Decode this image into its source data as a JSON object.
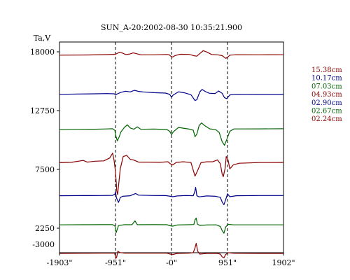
{
  "chart_data": {
    "type": "line",
    "title": "SUN_A-20:2002-08-30 10:35:21.900",
    "ylabel": "Ta,V",
    "xlabel": "",
    "xlim": [
      -1903,
      1902
    ],
    "ylim": [
      -3000,
      20000
    ],
    "x_ticks": [
      -1903,
      -951,
      0,
      951,
      1902
    ],
    "x_tick_labels": [
      "-1903\"",
      "-951\"",
      "-0\"",
      "951\"",
      "1902\""
    ],
    "y_ticks": [
      -3000,
      2250,
      7500,
      12750,
      18000
    ],
    "y_tick_labels": [
      "-3000",
      "2250",
      "7500",
      "12750",
      "18000"
    ],
    "vlines": [
      -951,
      0,
      951
    ],
    "grid": false,
    "legend_position": "right",
    "series": [
      {
        "name": "15.38cm",
        "color": "#8b0000",
        "points": [
          [
            -1903,
            17700
          ],
          [
            -1400,
            17720
          ],
          [
            -1100,
            17750
          ],
          [
            -951,
            17780
          ],
          [
            -930,
            17840
          ],
          [
            -880,
            17960
          ],
          [
            -830,
            17880
          ],
          [
            -780,
            17760
          ],
          [
            -720,
            17790
          ],
          [
            -650,
            17900
          ],
          [
            -600,
            17840
          ],
          [
            -520,
            17730
          ],
          [
            -300,
            17730
          ],
          [
            -80,
            17760
          ],
          [
            -40,
            17740
          ],
          [
            -10,
            17600
          ],
          [
            20,
            17530
          ],
          [
            60,
            17660
          ],
          [
            150,
            17780
          ],
          [
            300,
            17770
          ],
          [
            380,
            17650
          ],
          [
            430,
            17610
          ],
          [
            500,
            17930
          ],
          [
            540,
            18100
          ],
          [
            600,
            17980
          ],
          [
            680,
            17760
          ],
          [
            780,
            17730
          ],
          [
            860,
            17660
          ],
          [
            920,
            17420
          ],
          [
            951,
            17500
          ],
          [
            990,
            17700
          ],
          [
            1100,
            17740
          ],
          [
            1500,
            17730
          ],
          [
            1902,
            17740
          ]
        ]
      },
      {
        "name": "10.17cm",
        "color": "#00008b",
        "points": [
          [
            -1903,
            14200
          ],
          [
            -1600,
            14230
          ],
          [
            -1300,
            14250
          ],
          [
            -1100,
            14270
          ],
          [
            -970,
            14250
          ],
          [
            -951,
            14130
          ],
          [
            -930,
            14220
          ],
          [
            -860,
            14380
          ],
          [
            -780,
            14480
          ],
          [
            -700,
            14420
          ],
          [
            -630,
            14560
          ],
          [
            -560,
            14460
          ],
          [
            -480,
            14420
          ],
          [
            -300,
            14350
          ],
          [
            -100,
            14310
          ],
          [
            -30,
            14200
          ],
          [
            0,
            13950
          ],
          [
            30,
            14150
          ],
          [
            120,
            14430
          ],
          [
            220,
            14340
          ],
          [
            330,
            14170
          ],
          [
            400,
            13650
          ],
          [
            430,
            13720
          ],
          [
            480,
            14420
          ],
          [
            520,
            14640
          ],
          [
            570,
            14470
          ],
          [
            640,
            14300
          ],
          [
            740,
            14270
          ],
          [
            800,
            14500
          ],
          [
            860,
            14300
          ],
          [
            900,
            13900
          ],
          [
            940,
            13820
          ],
          [
            990,
            14150
          ],
          [
            1080,
            14200
          ],
          [
            1500,
            14190
          ],
          [
            1902,
            14190
          ]
        ]
      },
      {
        "name": "07.03cm",
        "color": "#006400",
        "points": [
          [
            -1903,
            11050
          ],
          [
            -1600,
            11080
          ],
          [
            -1300,
            11090
          ],
          [
            -1100,
            11110
          ],
          [
            -1000,
            11130
          ],
          [
            -960,
            10980
          ],
          [
            -951,
            10600
          ],
          [
            -920,
            10050
          ],
          [
            -890,
            10380
          ],
          [
            -860,
            10840
          ],
          [
            -800,
            11250
          ],
          [
            -750,
            11480
          ],
          [
            -700,
            11200
          ],
          [
            -640,
            11090
          ],
          [
            -580,
            11300
          ],
          [
            -520,
            11080
          ],
          [
            -300,
            11100
          ],
          [
            -80,
            11060
          ],
          [
            -30,
            10900
          ],
          [
            0,
            10600
          ],
          [
            30,
            10850
          ],
          [
            120,
            11250
          ],
          [
            200,
            11180
          ],
          [
            300,
            11100
          ],
          [
            370,
            11000
          ],
          [
            400,
            10420
          ],
          [
            430,
            10650
          ],
          [
            470,
            11420
          ],
          [
            510,
            11650
          ],
          [
            570,
            11390
          ],
          [
            650,
            11120
          ],
          [
            750,
            11050
          ],
          [
            810,
            10800
          ],
          [
            860,
            9980
          ],
          [
            900,
            9650
          ],
          [
            940,
            10200
          ],
          [
            990,
            10900
          ],
          [
            1060,
            11110
          ],
          [
            1500,
            11120
          ],
          [
            1902,
            11130
          ]
        ]
      },
      {
        "name": "04.93cm",
        "color": "#8b0000",
        "points": [
          [
            -1903,
            8100
          ],
          [
            -1700,
            8130
          ],
          [
            -1500,
            8300
          ],
          [
            -1430,
            8150
          ],
          [
            -1300,
            8230
          ],
          [
            -1150,
            8260
          ],
          [
            -1050,
            8520
          ],
          [
            -1000,
            8950
          ],
          [
            -975,
            8300
          ],
          [
            -951,
            7300
          ],
          [
            -930,
            5600
          ],
          [
            -915,
            5250
          ],
          [
            -895,
            6250
          ],
          [
            -870,
            7550
          ],
          [
            -820,
            8650
          ],
          [
            -760,
            8750
          ],
          [
            -700,
            8400
          ],
          [
            -640,
            8330
          ],
          [
            -560,
            8150
          ],
          [
            -400,
            8150
          ],
          [
            -200,
            8130
          ],
          [
            -60,
            8180
          ],
          [
            -20,
            8000
          ],
          [
            20,
            7900
          ],
          [
            80,
            8120
          ],
          [
            200,
            8180
          ],
          [
            330,
            8110
          ],
          [
            400,
            6900
          ],
          [
            440,
            7350
          ],
          [
            500,
            8100
          ],
          [
            600,
            8180
          ],
          [
            700,
            8180
          ],
          [
            780,
            8350
          ],
          [
            830,
            8000
          ],
          [
            860,
            7100
          ],
          [
            880,
            6850
          ],
          [
            910,
            7600
          ],
          [
            930,
            8650
          ],
          [
            960,
            8350
          ],
          [
            990,
            7550
          ],
          [
            1050,
            7900
          ],
          [
            1150,
            8050
          ],
          [
            1500,
            8110
          ],
          [
            1902,
            8120
          ]
        ]
      },
      {
        "name": "02.90cm",
        "color": "#00008b",
        "points": [
          [
            -1903,
            5150
          ],
          [
            -1500,
            5160
          ],
          [
            -1200,
            5170
          ],
          [
            -1000,
            5180
          ],
          [
            -960,
            5300
          ],
          [
            -951,
            5520
          ],
          [
            -935,
            4970
          ],
          [
            -900,
            4550
          ],
          [
            -870,
            4980
          ],
          [
            -830,
            5100
          ],
          [
            -700,
            5150
          ],
          [
            -610,
            5350
          ],
          [
            -560,
            5200
          ],
          [
            -300,
            5170
          ],
          [
            -100,
            5160
          ],
          [
            -20,
            5100
          ],
          [
            20,
            5060
          ],
          [
            100,
            5130
          ],
          [
            250,
            5170
          ],
          [
            370,
            5150
          ],
          [
            395,
            5500
          ],
          [
            410,
            5900
          ],
          [
            430,
            5150
          ],
          [
            470,
            5050
          ],
          [
            600,
            5130
          ],
          [
            750,
            5100
          ],
          [
            830,
            5000
          ],
          [
            860,
            4600
          ],
          [
            890,
            4350
          ],
          [
            920,
            4800
          ],
          [
            951,
            5320
          ],
          [
            990,
            5060
          ],
          [
            1100,
            5150
          ],
          [
            1500,
            5170
          ],
          [
            1902,
            5170
          ]
        ]
      },
      {
        "name": "02.67cm",
        "color": "#006400",
        "points": [
          [
            -1903,
            2550
          ],
          [
            -1500,
            2560
          ],
          [
            -1200,
            2570
          ],
          [
            -1000,
            2570
          ],
          [
            -960,
            2450
          ],
          [
            -940,
            1850
          ],
          [
            -925,
            2100
          ],
          [
            -900,
            2480
          ],
          [
            -800,
            2560
          ],
          [
            -670,
            2560
          ],
          [
            -620,
            2900
          ],
          [
            -580,
            2560
          ],
          [
            -300,
            2570
          ],
          [
            -80,
            2560
          ],
          [
            -20,
            2470
          ],
          [
            20,
            2430
          ],
          [
            100,
            2540
          ],
          [
            300,
            2560
          ],
          [
            380,
            2580
          ],
          [
            400,
            3000
          ],
          [
            420,
            3150
          ],
          [
            440,
            2620
          ],
          [
            480,
            2500
          ],
          [
            600,
            2540
          ],
          [
            760,
            2550
          ],
          [
            830,
            2400
          ],
          [
            860,
            2050
          ],
          [
            890,
            1800
          ],
          [
            920,
            2350
          ],
          [
            960,
            2600
          ],
          [
            1050,
            2550
          ],
          [
            1500,
            2550
          ],
          [
            1902,
            2550
          ]
        ]
      },
      {
        "name": "02.24cm",
        "color": "#8b0000",
        "points": [
          [
            -1903,
            0
          ],
          [
            -1500,
            10
          ],
          [
            -1200,
            20
          ],
          [
            -1000,
            20
          ],
          [
            -965,
            20
          ],
          [
            -945,
            -450
          ],
          [
            -930,
            -300
          ],
          [
            -910,
            200
          ],
          [
            -880,
            80
          ],
          [
            -800,
            20
          ],
          [
            -600,
            20
          ],
          [
            -300,
            20
          ],
          [
            -80,
            20
          ],
          [
            -20,
            -60
          ],
          [
            20,
            -100
          ],
          [
            100,
            0
          ],
          [
            300,
            20
          ],
          [
            370,
            60
          ],
          [
            400,
            500
          ],
          [
            420,
            900
          ],
          [
            445,
            200
          ],
          [
            480,
            -60
          ],
          [
            600,
            0
          ],
          [
            780,
            0
          ],
          [
            830,
            -60
          ],
          [
            860,
            -300
          ],
          [
            890,
            -400
          ],
          [
            920,
            -100
          ],
          [
            960,
            60
          ],
          [
            1050,
            10
          ],
          [
            1500,
            0
          ],
          [
            1902,
            0
          ]
        ]
      }
    ]
  }
}
